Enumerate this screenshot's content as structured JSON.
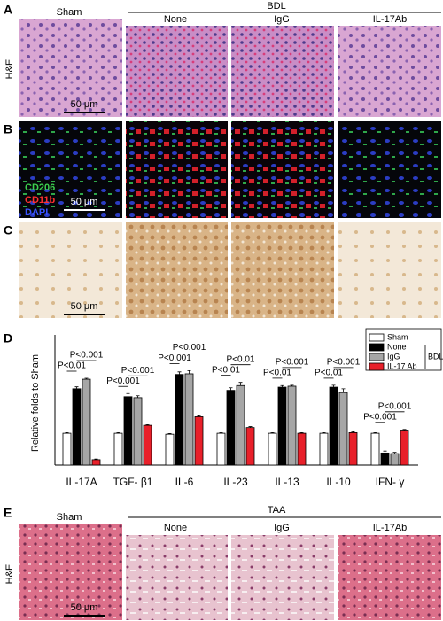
{
  "panels": {
    "a": {
      "label": "A",
      "stain": "H&E",
      "group": "BDL",
      "columns": [
        "Sham",
        "None",
        "IgG",
        "IL-17Ab"
      ],
      "scale_bar": "50 μm"
    },
    "b": {
      "label": "B",
      "markers": [
        "CD206",
        "CD11b",
        "DAPI"
      ],
      "scale_bar": "50 μm"
    },
    "c": {
      "label": "C",
      "scale_bar": "50 μm"
    },
    "e": {
      "label": "E",
      "stain": "H&E",
      "group": "TAA",
      "columns": [
        "Sham",
        "None",
        "IgG",
        "IL-17Ab"
      ],
      "scale_bar": "50 μm"
    }
  },
  "chart_data": {
    "type": "bar",
    "panel_label": "D",
    "y_label": "Relative folds to Sham",
    "categories": [
      "IL-17A",
      "TGF- β1",
      "IL-6",
      "IL-23",
      "IL-13",
      "IL-10",
      "IFN- γ"
    ],
    "ylim": [
      0,
      3.9
    ],
    "series": [
      {
        "name": "Sham",
        "color": "#ffffff",
        "values": [
          1,
          1,
          0.97,
          1,
          1,
          1,
          1
        ],
        "errors": [
          0.02,
          0.02,
          0.02,
          0.02,
          0.02,
          0.02,
          0.02
        ]
      },
      {
        "name": "None",
        "color": "#000000",
        "values": [
          2.4,
          2.15,
          2.85,
          2.35,
          2.45,
          2.45,
          0.38
        ],
        "errors": [
          0.06,
          0.1,
          0.08,
          0.08,
          0.05,
          0.06,
          0.06
        ]
      },
      {
        "name": "IgG",
        "color": "#a6a6a6",
        "values": [
          2.7,
          2.12,
          2.87,
          2.5,
          2.48,
          2.28,
          0.36
        ],
        "errors": [
          0.03,
          0.06,
          0.1,
          0.1,
          0.03,
          0.12,
          0.04
        ]
      },
      {
        "name": "IL-17 Ab",
        "color": "#e8202a",
        "values": [
          0.17,
          1.25,
          1.52,
          1.18,
          1.0,
          1.02,
          1.1
        ],
        "errors": [
          0.02,
          0.02,
          0.03,
          0.03,
          0.02,
          0.03,
          0.02
        ]
      }
    ],
    "legend_group": "BDL",
    "annotations": [
      [
        "P<0.01",
        "P<0.001"
      ],
      [
        "P<0.001",
        "P<0.001"
      ],
      [
        "P<0.001",
        "P<0.001"
      ],
      [
        "P<0.01",
        "P<0.01"
      ],
      [
        "P<0.01",
        "P<0.001"
      ],
      [
        "P<0.01",
        "P<0.001"
      ],
      [
        "P<0.001",
        "P<0.001"
      ]
    ]
  }
}
